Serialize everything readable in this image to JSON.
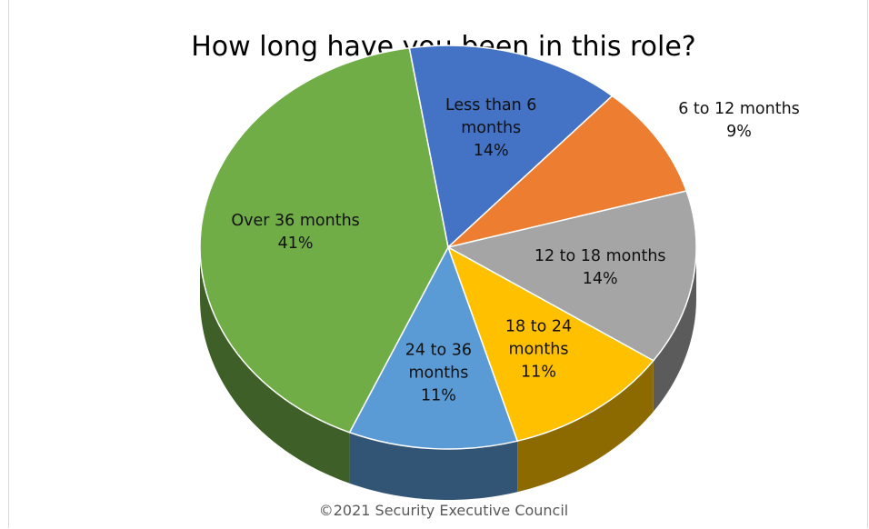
{
  "chart_data": {
    "type": "pie",
    "title": "How long have you been in this role?",
    "slices": [
      {
        "name": "Less than 6 months",
        "percent": 14,
        "label_lines": [
          "Less than 6",
          "months",
          "14%"
        ],
        "color": "#4472C4"
      },
      {
        "name": "6 to 12 months",
        "percent": 9,
        "label_lines": [
          "6 to 12 months",
          "9%"
        ],
        "color": "#ED7D31"
      },
      {
        "name": "12 to 18 months",
        "percent": 14,
        "label_lines": [
          "12 to 18 months",
          "14%"
        ],
        "color": "#A5A5A5"
      },
      {
        "name": "18 to 24 months",
        "percent": 11,
        "label_lines": [
          "18 to 24",
          "months",
          "11%"
        ],
        "color": "#FFC000"
      },
      {
        "name": "24 to 36 months",
        "percent": 11,
        "label_lines": [
          "24 to 36",
          "months",
          "11%"
        ],
        "color": "#5B9BD5"
      },
      {
        "name": "Over 36 months",
        "percent": 41,
        "label_lines": [
          "Over 36 months",
          "41%"
        ],
        "color": "#70AD47"
      }
    ]
  },
  "footer": {
    "copyright": "©2021 Security Executive Council"
  }
}
